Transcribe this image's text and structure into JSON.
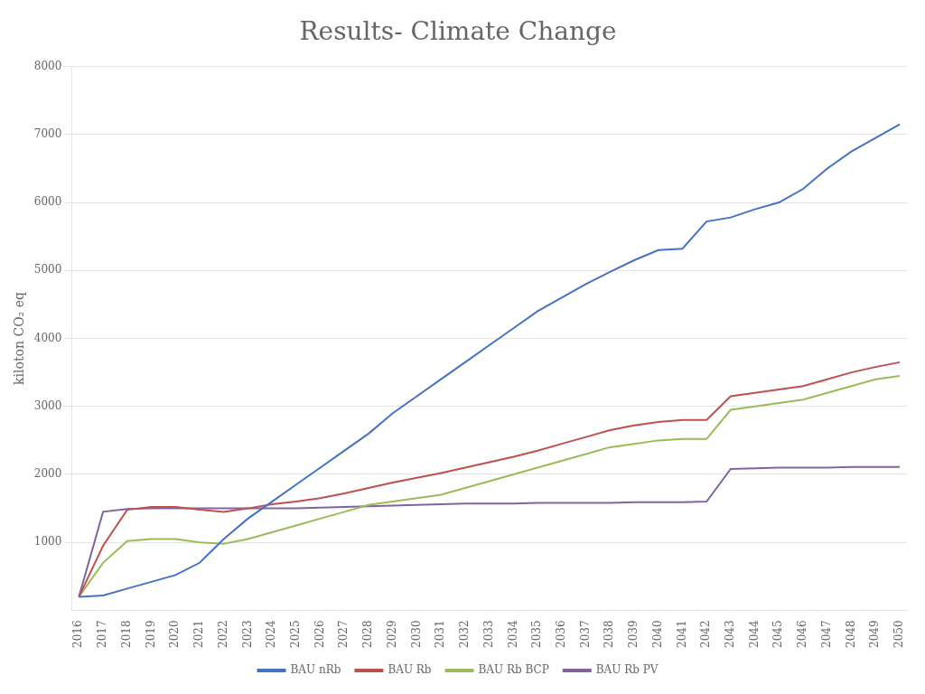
{
  "chart_data": {
    "type": "line",
    "title": "Results- Climate Change",
    "y_label": "kiloton CO₂ eq",
    "x": [
      2016,
      2017,
      2018,
      2019,
      2020,
      2021,
      2022,
      2023,
      2024,
      2025,
      2026,
      2027,
      2028,
      2029,
      2030,
      2031,
      2032,
      2033,
      2034,
      2035,
      2036,
      2037,
      2038,
      2039,
      2040,
      2041,
      2042,
      2043,
      2044,
      2045,
      2046,
      2047,
      2048,
      2049,
      2050
    ],
    "series": [
      {
        "name": "BAU nRb",
        "color": "#4472C4",
        "values": [
          200,
          220,
          320,
          420,
          520,
          700,
          1050,
          1350,
          1600,
          1850,
          2100,
          2350,
          2600,
          2900,
          3150,
          3400,
          3650,
          3900,
          4150,
          4400,
          4600,
          4800,
          4980,
          5150,
          5300,
          5320,
          5720,
          5780,
          5900,
          6000,
          6200,
          6500,
          6750,
          6950,
          7150
        ]
      },
      {
        "name": "BAU Rb",
        "color": "#C0504D",
        "values": [
          200,
          950,
          1480,
          1520,
          1520,
          1480,
          1450,
          1500,
          1560,
          1600,
          1650,
          1720,
          1800,
          1880,
          1950,
          2020,
          2100,
          2180,
          2260,
          2350,
          2450,
          2550,
          2650,
          2720,
          2770,
          2800,
          2800,
          3150,
          3200,
          3250,
          3300,
          3400,
          3500,
          3580,
          3650
        ]
      },
      {
        "name": "BAU Rb BCP",
        "color": "#9BBB59",
        "values": [
          200,
          700,
          1020,
          1050,
          1050,
          1000,
          980,
          1050,
          1150,
          1250,
          1350,
          1450,
          1550,
          1600,
          1650,
          1700,
          1800,
          1900,
          2000,
          2100,
          2200,
          2300,
          2400,
          2450,
          2500,
          2520,
          2520,
          2950,
          3000,
          3050,
          3100,
          3200,
          3300,
          3400,
          3450
        ]
      },
      {
        "name": "BAU Rb PV",
        "color": "#8064A2",
        "values": [
          200,
          1450,
          1490,
          1500,
          1500,
          1500,
          1500,
          1500,
          1500,
          1500,
          1510,
          1520,
          1530,
          1540,
          1550,
          1560,
          1570,
          1570,
          1570,
          1580,
          1580,
          1580,
          1580,
          1590,
          1590,
          1590,
          1600,
          2080,
          2090,
          2100,
          2100,
          2100,
          2110,
          2110,
          2110
        ]
      }
    ],
    "xlim": [
      2015.7,
      2050.3
    ],
    "xticks": [
      2016,
      2017,
      2018,
      2019,
      2020,
      2021,
      2022,
      2023,
      2024,
      2025,
      2026,
      2027,
      2028,
      2029,
      2030,
      2031,
      2032,
      2033,
      2034,
      2035,
      2036,
      2037,
      2038,
      2039,
      2040,
      2041,
      2042,
      2043,
      2044,
      2045,
      2046,
      2047,
      2048,
      2049,
      2050
    ],
    "ylim": [
      0,
      8000
    ],
    "yticks": [
      1000,
      2000,
      3000,
      4000,
      5000,
      6000,
      7000,
      8000
    ],
    "grid": "y",
    "legend": "bottom"
  }
}
